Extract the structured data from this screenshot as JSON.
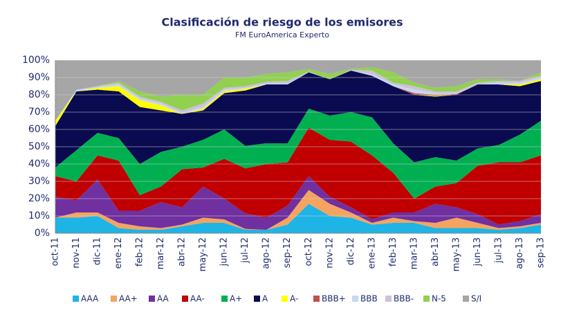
{
  "chart_data": {
    "type": "stacked_area",
    "title": "Clasificación de riesgo de los emisores",
    "subtitle": "FM EuroAmerica Experto",
    "categories": [
      "oct-11",
      "nov-11",
      "dic-11",
      "ene-12",
      "feb-12",
      "mar-12",
      "abr-12",
      "may-12",
      "jun-12",
      "jul-12",
      "ago-12",
      "sep-12",
      "oct-12",
      "nov-12",
      "dic-12",
      "ene-13",
      "feb-13",
      "mar-13",
      "abr-13",
      "may-13",
      "jun-13",
      "jul-13",
      "ago-13",
      "sep-13"
    ],
    "series": [
      {
        "name": "AAA",
        "color": "#1eb4e6",
        "values": [
          9,
          9,
          10,
          3,
          2,
          2,
          4,
          6,
          6,
          2,
          2,
          5,
          17,
          10,
          9,
          5,
          6,
          6,
          3,
          3,
          3,
          2,
          3,
          5
        ]
      },
      {
        "name": "AA+",
        "color": "#f4a460",
        "values": [
          0,
          3,
          2,
          3,
          2,
          1,
          1,
          3,
          2,
          0.5,
          0,
          4,
          8,
          7,
          3,
          1,
          3,
          1,
          3,
          6,
          3,
          1,
          1,
          1
        ]
      },
      {
        "name": "AA",
        "color": "#7030a0",
        "values": [
          12,
          7,
          19,
          7,
          9,
          15,
          10,
          18,
          12,
          9,
          7,
          7,
          8,
          4,
          3,
          2,
          3,
          5,
          11,
          6,
          5,
          2,
          3,
          5
        ]
      },
      {
        "name": "AA-",
        "color": "#c00000",
        "values": [
          12,
          11,
          14,
          29,
          9,
          9,
          22,
          11,
          23,
          26,
          31,
          25,
          28,
          33,
          38,
          37,
          23,
          8,
          10,
          14,
          28,
          36,
          34,
          34
        ]
      },
      {
        "name": "A+",
        "color": "#00b050",
        "values": [
          5,
          18,
          13,
          13,
          18,
          20,
          13,
          16,
          17,
          13,
          12,
          11,
          11,
          14,
          17,
          22,
          17,
          21,
          17,
          13,
          10,
          10,
          16,
          20
        ]
      },
      {
        "name": "A",
        "color": "#0a0a50",
        "values": [
          24,
          34,
          25,
          27,
          33,
          24,
          19,
          17,
          21,
          32,
          34,
          34,
          21,
          21,
          24,
          24,
          33,
          39,
          35,
          38,
          37,
          35,
          28,
          23
        ]
      },
      {
        "name": "A-",
        "color": "#ffff00",
        "values": [
          3,
          0,
          1,
          3,
          4,
          3,
          0,
          1,
          1,
          1,
          0,
          0,
          0,
          0,
          0,
          0,
          0,
          0,
          0.5,
          0,
          0,
          0,
          1,
          1
        ]
      },
      {
        "name": "BBB+",
        "color": "#c0504d",
        "values": [
          0,
          0,
          0,
          0,
          0,
          0,
          0,
          0,
          0,
          0,
          0,
          0,
          0,
          0,
          0,
          0,
          0,
          1,
          0.5,
          0.5,
          0,
          0,
          0,
          0
        ]
      },
      {
        "name": "BBB",
        "color": "#c5d9f1",
        "values": [
          0,
          0.5,
          0.5,
          1,
          1,
          1,
          0.5,
          1,
          1,
          0.5,
          0.5,
          0.5,
          0,
          0,
          0,
          1,
          1,
          2,
          1,
          0.5,
          0,
          1,
          1,
          1
        ]
      },
      {
        "name": "BBB-",
        "color": "#ccc0da",
        "values": [
          0,
          0.5,
          0.5,
          1,
          1,
          1,
          1.5,
          2,
          1,
          1,
          1,
          1.5,
          0.5,
          0,
          0.5,
          2,
          1,
          2,
          1,
          1,
          1,
          1,
          1,
          1
        ]
      },
      {
        "name": "N-5",
        "color": "#92d050",
        "values": [
          0,
          0,
          0,
          1,
          3,
          3,
          9,
          5,
          6,
          5,
          4.5,
          5,
          1.5,
          3,
          0.5,
          2,
          6,
          2,
          2,
          3,
          2,
          1,
          0,
          2
        ]
      },
      {
        "name": "S/I",
        "color": "#a6a6a6",
        "values": [
          35,
          17,
          15,
          12,
          18,
          21,
          20,
          20,
          10,
          10,
          8,
          7,
          5,
          8,
          5,
          4,
          7,
          13,
          16,
          15,
          11,
          11,
          12,
          7
        ]
      }
    ],
    "ylim": [
      0,
      100
    ],
    "yticks": [
      {
        "value": 0,
        "label": "0%"
      },
      {
        "value": 10,
        "label": "10%"
      },
      {
        "value": 20,
        "label": "20%"
      },
      {
        "value": 30,
        "label": "30%"
      },
      {
        "value": 40,
        "label": "40%"
      },
      {
        "value": 50,
        "label": "50%"
      },
      {
        "value": 60,
        "label": "60%"
      },
      {
        "value": 70,
        "label": "70%"
      },
      {
        "value": 80,
        "label": "80%"
      },
      {
        "value": 90,
        "label": "90%"
      },
      {
        "value": 100,
        "label": "100%"
      }
    ],
    "grid": true
  }
}
